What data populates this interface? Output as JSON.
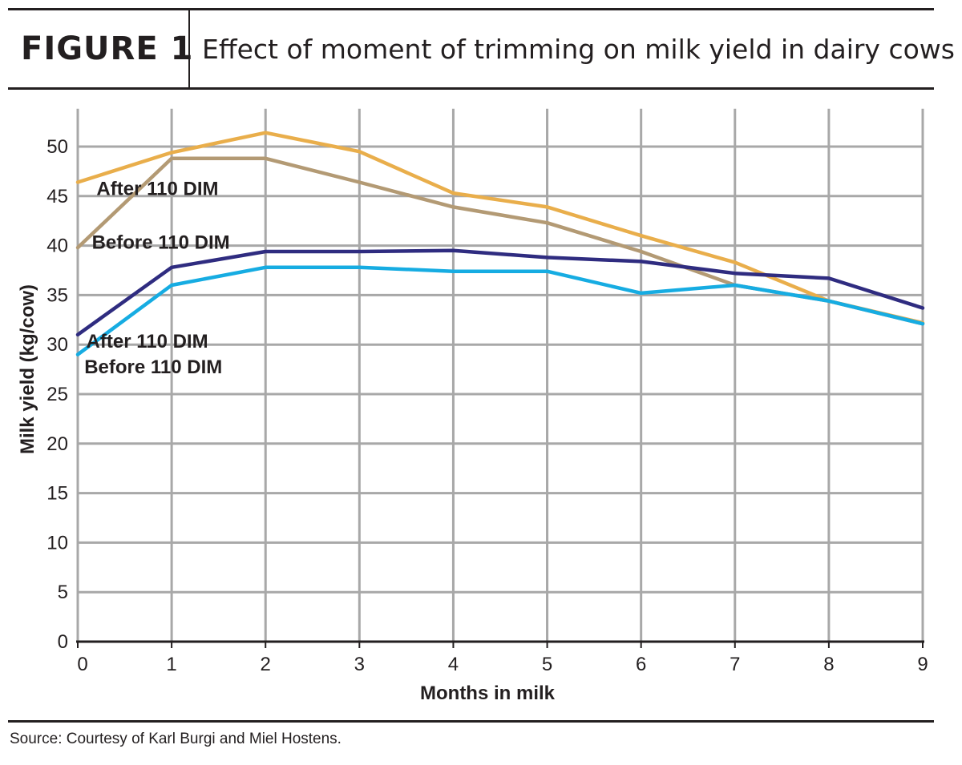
{
  "header": {
    "figure_label": "FIGURE 1",
    "title": "Effect of moment of trimming on milk yield in dairy cows"
  },
  "footer": {
    "source": "Source: Courtesy of Karl Burgi and Miel Hostens."
  },
  "chart_data": {
    "type": "line",
    "title": "Effect of moment of trimming on milk yield in dairy cows",
    "xlabel": "Months in milk",
    "ylabel": "Milk yield (kg/cow)",
    "x": [
      0,
      1,
      2,
      3,
      4,
      5,
      6,
      7,
      8,
      9
    ],
    "x_ticks": [
      "0",
      "1",
      "2",
      "3",
      "4",
      "5",
      "6",
      "7",
      "8",
      "9"
    ],
    "y_ticks": [
      "0",
      "5",
      "10",
      "15",
      "20",
      "25",
      "30",
      "35",
      "40",
      "45",
      "50"
    ],
    "xlim": [
      0,
      9
    ],
    "ylim": [
      0,
      53.5
    ],
    "grid": true,
    "legend": "none",
    "series": [
      {
        "name": "After 110 DIM",
        "color": "#e9ae4b",
        "values": [
          46.4,
          49.4,
          51.4,
          49.5,
          45.3,
          43.9,
          41.0,
          38.3,
          34.4,
          32.2
        ]
      },
      {
        "name": "Before 110 DIM",
        "color": "#b39a74",
        "values": [
          39.8,
          48.8,
          48.8,
          46.4,
          43.9,
          42.3,
          39.4,
          36.0,
          34.4,
          32.1
        ]
      },
      {
        "name": "After 110 DIM",
        "color": "#2f2c80",
        "values": [
          31.0,
          37.8,
          39.4,
          39.4,
          39.5,
          38.8,
          38.4,
          37.2,
          36.7,
          33.7
        ]
      },
      {
        "name": "Before 110 DIM",
        "color": "#16ace2",
        "values": [
          29.0,
          36.0,
          37.8,
          37.8,
          37.4,
          37.4,
          35.2,
          36.0,
          34.4,
          32.1
        ]
      }
    ],
    "annotations": [
      {
        "text": "After 110 DIM",
        "x": 0.2,
        "y": 45.1
      },
      {
        "text": "Before 110 DIM",
        "x": 0.15,
        "y": 39.7
      },
      {
        "text": "After 110 DIM",
        "x": 0.09,
        "y": 29.7
      },
      {
        "text": "Before 110 DIM",
        "x": 0.07,
        "y": 27.1
      }
    ]
  }
}
